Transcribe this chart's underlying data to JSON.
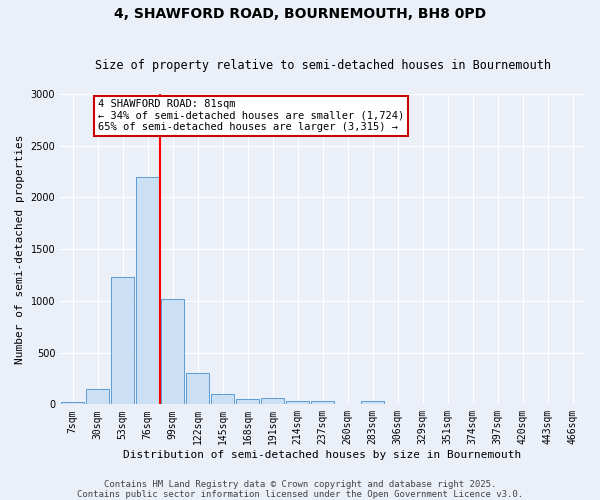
{
  "title": "4, SHAWFORD ROAD, BOURNEMOUTH, BH8 0PD",
  "subtitle": "Size of property relative to semi-detached houses in Bournemouth",
  "xlabel": "Distribution of semi-detached houses by size in Bournemouth",
  "ylabel": "Number of semi-detached properties",
  "categories": [
    "7sqm",
    "30sqm",
    "53sqm",
    "76sqm",
    "99sqm",
    "122sqm",
    "145sqm",
    "168sqm",
    "191sqm",
    "214sqm",
    "237sqm",
    "260sqm",
    "283sqm",
    "306sqm",
    "329sqm",
    "351sqm",
    "374sqm",
    "397sqm",
    "420sqm",
    "443sqm",
    "466sqm"
  ],
  "values": [
    20,
    150,
    1230,
    2200,
    1020,
    300,
    100,
    55,
    60,
    35,
    30,
    0,
    30,
    0,
    0,
    0,
    0,
    0,
    0,
    0,
    0
  ],
  "bar_color": "#cce0f5",
  "bar_edge_color": "#5b9bd5",
  "red_line_x": 3.5,
  "property_label": "4 SHAWFORD ROAD: 81sqm",
  "pct_smaller": "34%",
  "count_smaller": "1,724",
  "pct_larger": "65%",
  "count_larger": "3,315",
  "annotation_box_color": "#ffffff",
  "annotation_box_edge": "#cc0000",
  "ylim": [
    0,
    3000
  ],
  "yticks": [
    0,
    500,
    1000,
    1500,
    2000,
    2500,
    3000
  ],
  "footer_line1": "Contains HM Land Registry data © Crown copyright and database right 2025.",
  "footer_line2": "Contains public sector information licensed under the Open Government Licence v3.0.",
  "background_color": "#eaeff8",
  "grid_color": "#ffffff",
  "title_fontsize": 10,
  "subtitle_fontsize": 8.5,
  "axis_fontsize": 8,
  "tick_fontsize": 7,
  "ann_fontsize": 7.5,
  "footer_fontsize": 6.5
}
